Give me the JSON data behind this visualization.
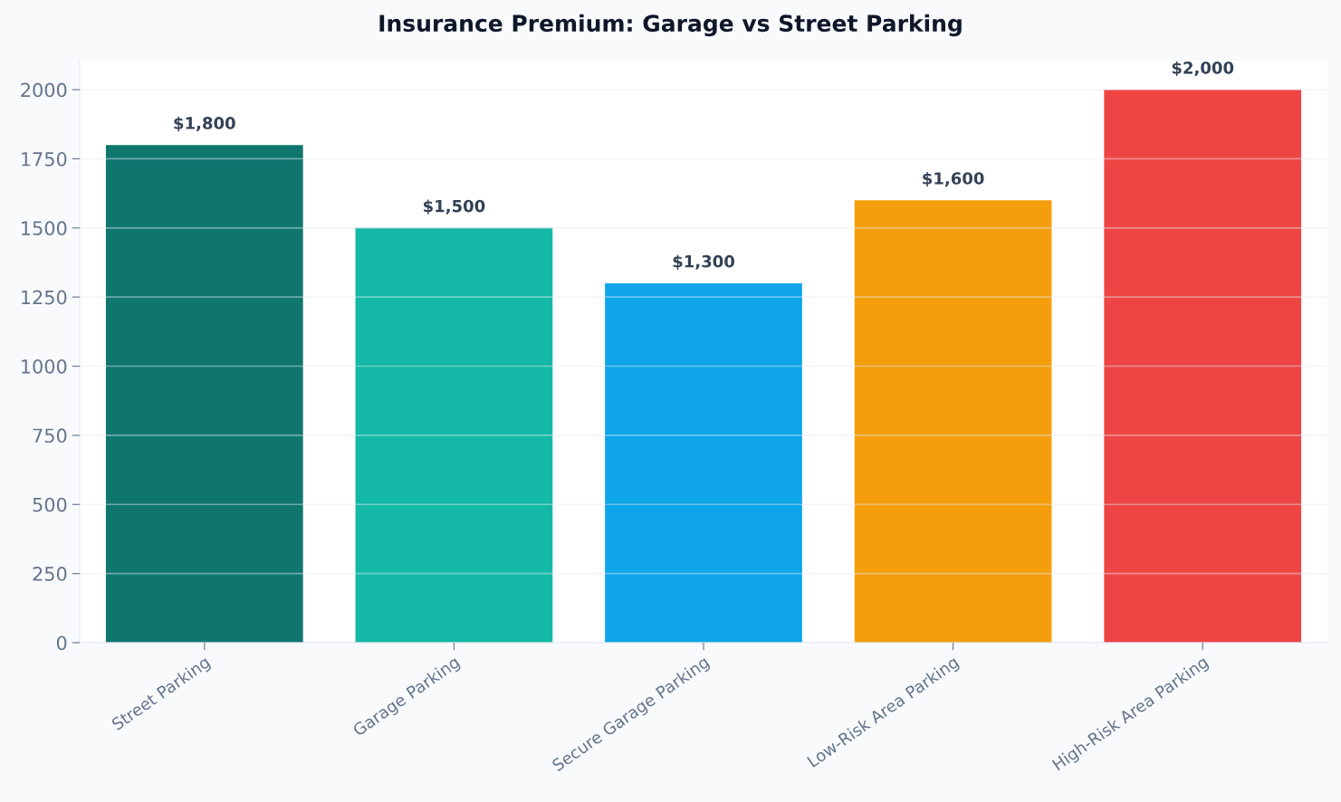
{
  "chart_data": {
    "type": "bar",
    "title": "Insurance Premium: Garage vs Street Parking",
    "categories": [
      "Street Parking",
      "Garage Parking",
      "Secure Garage Parking",
      "Low-Risk Area Parking",
      "High-Risk Area Parking"
    ],
    "values": [
      1800,
      1500,
      1300,
      1600,
      2000
    ],
    "colors": [
      "#0f766e",
      "#14b8a6",
      "#0ea5e9",
      "#f59e0b",
      "#ef4444"
    ],
    "value_labels": [
      "$1,800",
      "$1,500",
      "$1,300",
      "$1,600",
      "$2,000"
    ],
    "ylim": [
      0,
      2105
    ],
    "yticks": [
      0,
      250,
      500,
      750,
      1000,
      1250,
      1500,
      1750,
      2000
    ],
    "grid": "y",
    "legend": false
  }
}
